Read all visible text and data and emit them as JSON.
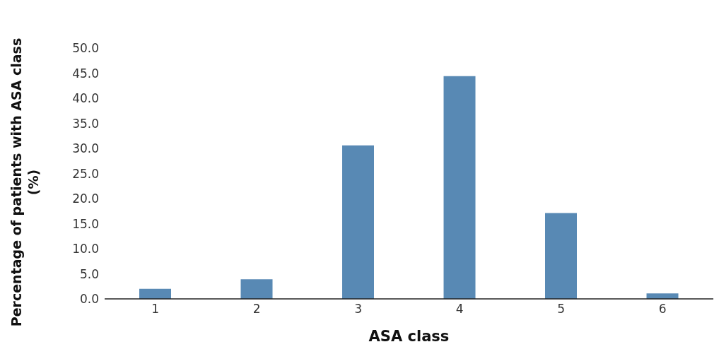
{
  "chart_data": {
    "type": "bar",
    "xlabel": "ASA class",
    "ylabel": "Percentage of patients with ASA class (%)",
    "categories": [
      "1",
      "2",
      "3",
      "4",
      "5",
      "6"
    ],
    "values": [
      2.0,
      3.9,
      30.6,
      44.4,
      17.1,
      1.1
    ],
    "color": "#5889b4",
    "ylim": [
      0,
      50
    ],
    "yticks": [
      {
        "value": 0,
        "label": "0.0"
      },
      {
        "value": 5,
        "label": "5.0"
      },
      {
        "value": 10,
        "label": "10.0"
      },
      {
        "value": 15,
        "label": "15.0"
      },
      {
        "value": 20,
        "label": "20.0"
      },
      {
        "value": 25,
        "label": "25.0"
      },
      {
        "value": 30,
        "label": "30.0"
      },
      {
        "value": 35,
        "label": "35.0"
      },
      {
        "value": 40,
        "label": "40.0"
      },
      {
        "value": 45,
        "label": "45.0"
      },
      {
        "value": 50,
        "label": "50.0"
      }
    ],
    "grid": false
  }
}
